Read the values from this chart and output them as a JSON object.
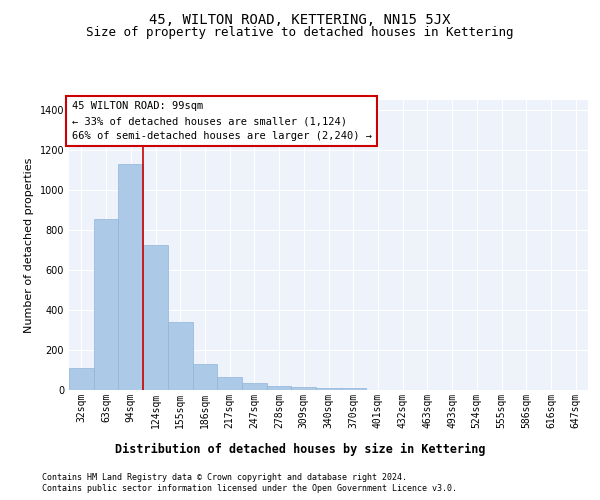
{
  "title": "45, WILTON ROAD, KETTERING, NN15 5JX",
  "subtitle": "Size of property relative to detached houses in Kettering",
  "xlabel": "Distribution of detached houses by size in Kettering",
  "ylabel": "Number of detached properties",
  "categories": [
    "32sqm",
    "63sqm",
    "94sqm",
    "124sqm",
    "155sqm",
    "186sqm",
    "217sqm",
    "247sqm",
    "278sqm",
    "309sqm",
    "340sqm",
    "370sqm",
    "401sqm",
    "432sqm",
    "463sqm",
    "493sqm",
    "524sqm",
    "555sqm",
    "586sqm",
    "616sqm",
    "647sqm"
  ],
  "values": [
    110,
    855,
    1130,
    725,
    340,
    130,
    63,
    37,
    22,
    17,
    12,
    8,
    0,
    0,
    0,
    0,
    0,
    0,
    0,
    0,
    0
  ],
  "bar_color": "#adc9e8",
  "bar_edgecolor": "#90b4d8",
  "background_color": "#eef2fb",
  "grid_color": "#ffffff",
  "vline_color": "#cc0000",
  "vline_x": 2.5,
  "annotation_box_text": "45 WILTON ROAD: 99sqm\n← 33% of detached houses are smaller (1,124)\n66% of semi-detached houses are larger (2,240) →",
  "annotation_fontsize": 7.5,
  "title_fontsize": 10,
  "subtitle_fontsize": 9,
  "xlabel_fontsize": 8.5,
  "ylabel_fontsize": 8,
  "tick_fontsize": 7,
  "footer_line1": "Contains HM Land Registry data © Crown copyright and database right 2024.",
  "footer_line2": "Contains public sector information licensed under the Open Government Licence v3.0.",
  "ylim": [
    0,
    1450
  ],
  "yticks": [
    0,
    200,
    400,
    600,
    800,
    1000,
    1200,
    1400
  ]
}
